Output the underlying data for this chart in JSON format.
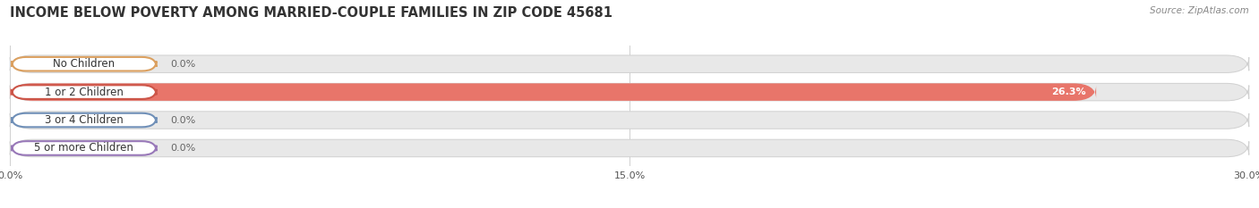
{
  "title": "INCOME BELOW POVERTY AMONG MARRIED-COUPLE FAMILIES IN ZIP CODE 45681",
  "source": "Source: ZipAtlas.com",
  "categories": [
    "No Children",
    "1 or 2 Children",
    "3 or 4 Children",
    "5 or more Children"
  ],
  "values": [
    0.0,
    26.3,
    0.0,
    0.0
  ],
  "bar_colors": [
    "#f2c18a",
    "#e8756a",
    "#9fb8d8",
    "#c0a8d0"
  ],
  "bar_edge_colors": [
    "#dba060",
    "#cc5548",
    "#7090b8",
    "#9878b8"
  ],
  "background_color": "#ffffff",
  "track_color": "#e8e8e8",
  "track_edge_color": "#d0d0d0",
  "xlim": [
    0,
    30
  ],
  "xticks": [
    0.0,
    15.0,
    30.0
  ],
  "xtick_labels": [
    "0.0%",
    "15.0%",
    "30.0%"
  ],
  "bar_height": 0.62,
  "label_fontsize": 8.5,
  "title_fontsize": 10.5,
  "value_fontsize": 8,
  "source_fontsize": 7.5
}
